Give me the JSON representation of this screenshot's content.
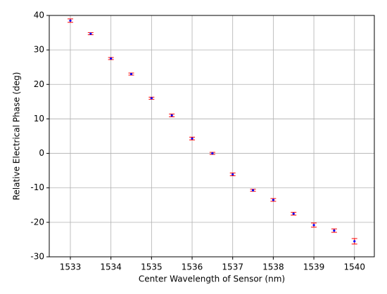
{
  "chart_data": {
    "type": "errorbar",
    "x_label": "Center Wavelength of Sensor (nm)",
    "y_label": "Relative Electrical Phase (deg)",
    "x": [
      1533,
      1533.5,
      1534,
      1534.5,
      1535,
      1535.5,
      1536,
      1536.5,
      1537,
      1537.5,
      1538,
      1538.5,
      1539,
      1539.5,
      1540
    ],
    "series": [
      {
        "color": "#0000ff",
        "error_color": "#ff0000",
        "values": [
          38.5,
          34.7,
          27.5,
          23.0,
          16.0,
          11.0,
          4.3,
          0.0,
          -6.1,
          -10.7,
          -13.5,
          -17.5,
          -20.8,
          -22.4,
          -25.5
        ],
        "errors": [
          0.5,
          0.3,
          0.3,
          0.3,
          0.3,
          0.4,
          0.4,
          0.3,
          0.4,
          0.3,
          0.4,
          0.4,
          0.6,
          0.5,
          0.8
        ]
      }
    ],
    "xlim": [
      1532.48,
      1540.49
    ],
    "ylim": [
      -30,
      40
    ],
    "xticks": [
      1533,
      1534,
      1535,
      1536,
      1537,
      1538,
      1539,
      1540
    ],
    "yticks": [
      -30,
      -20,
      -10,
      0,
      10,
      20,
      30,
      40
    ],
    "grid": true
  }
}
